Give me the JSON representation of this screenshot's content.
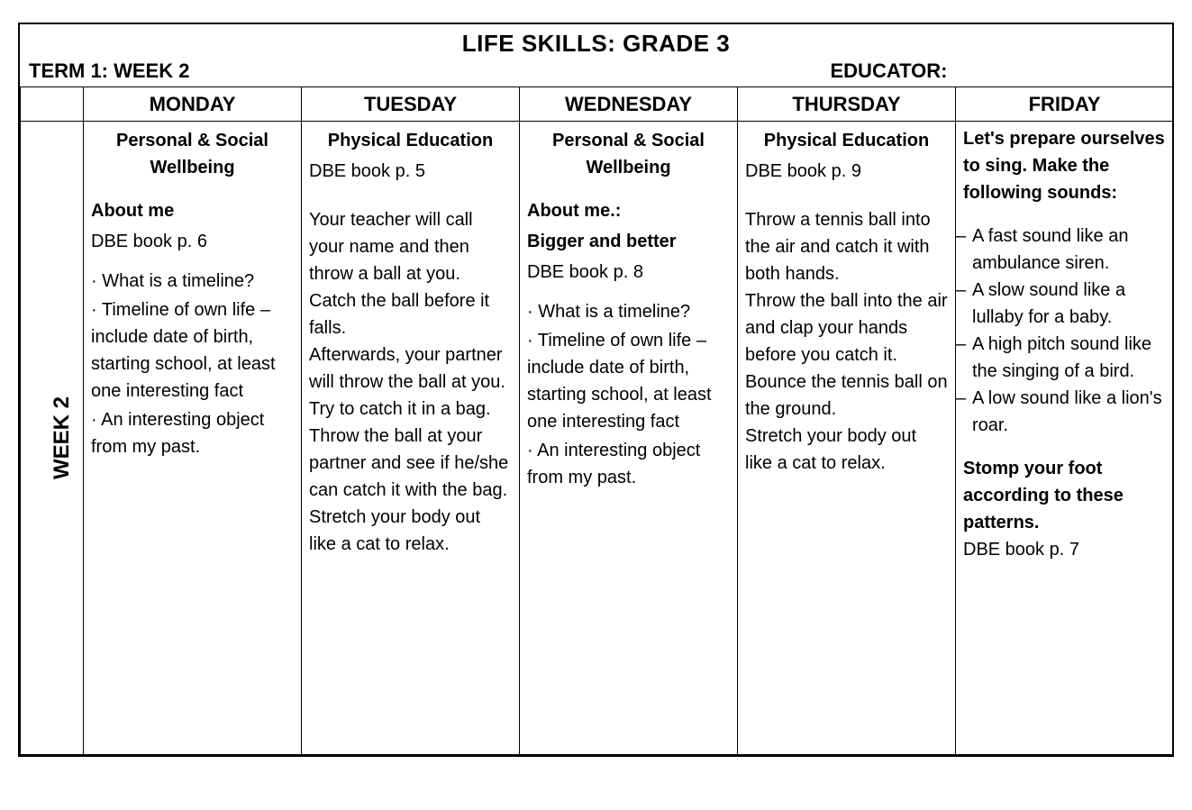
{
  "header": {
    "title": "LIFE SKILLS: GRADE 3",
    "term_week": "TERM 1: WEEK 2",
    "educator_label": "EDUCATOR:"
  },
  "row_label": "WEEK 2",
  "days": [
    "MONDAY",
    "TUESDAY",
    "WEDNESDAY",
    "THURSDAY",
    "FRIDAY"
  ],
  "monday": {
    "heading": "Personal & Social Wellbeing",
    "subheading": "About me",
    "ref": "DBE book p. 6",
    "bullets": [
      "What is a timeline?",
      "Timeline of own life – include date of birth, starting school, at least one interesting fact",
      "An interesting object from my past."
    ]
  },
  "tuesday": {
    "heading": "Physical Education",
    "ref": "DBE book p. 5",
    "body": "Your teacher will call your name and then throw a ball at you. Catch the ball before it falls.\nAfterwards, your partner will throw the ball at you.  Try to catch it in a bag.\nThrow the ball at your partner and see if he/she can catch it with the bag.\nStretch your body out like a cat to relax."
  },
  "wednesday": {
    "heading": "Personal & Social Wellbeing",
    "subheading1": "About me.:",
    "subheading2": "Bigger and better",
    "ref": "DBE book p. 8",
    "bullets": [
      "What is a timeline?",
      "Timeline of own life – include date of birth, starting school, at least one interesting fact",
      "An interesting object from my past."
    ]
  },
  "thursday": {
    "heading": "Physical Education",
    "ref": "DBE book p. 9",
    "body": "Throw a tennis ball into the air and catch it with both hands.\nThrow the ball into the air and clap your hands before you catch it.\nBounce the tennis ball on the ground.\nStretch your body out like a cat to relax."
  },
  "friday": {
    "intro": "Let's prepare ourselves to sing. Make the following sounds:",
    "items": [
      "A fast sound like an ambulance siren.",
      "A slow sound like a lullaby for a baby.",
      "A high pitch sound like the singing of a bird.",
      "A low sound like a lion's roar."
    ],
    "closing": "Stomp your foot according to these patterns.",
    "ref": "DBE book p. 7"
  }
}
